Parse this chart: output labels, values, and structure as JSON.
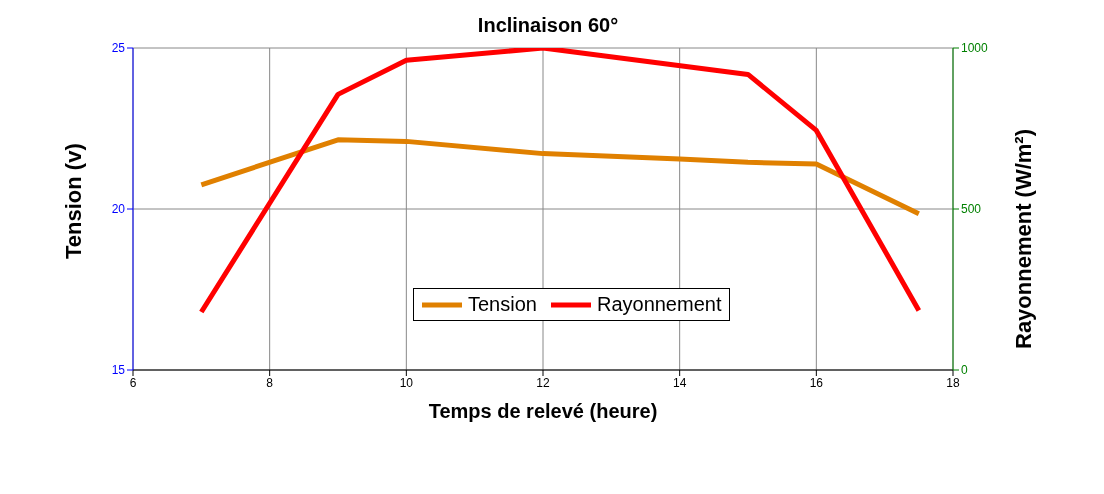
{
  "chart_data": {
    "type": "line",
    "title": "Inclinaison 60°",
    "xlabel": "Temps de relevé (heure)",
    "ylabel": "Tension (v)",
    "y2label": "Rayonnement (W/m²)",
    "x": [
      7,
      9,
      10,
      12,
      14,
      15,
      16,
      17.5
    ],
    "series": [
      {
        "name": "Tension",
        "color": "#e08000",
        "values": [
          20.75,
          22.15,
          22.1,
          21.72,
          21.55,
          21.45,
          21.4,
          19.85
        ]
      },
      {
        "name": "Rayonnement",
        "color": "#ff0000",
        "axis": "y2",
        "x": [
          7,
          9,
          10,
          12,
          15,
          16,
          17.5
        ],
        "values": [
          180,
          856,
          962,
          1000,
          918,
          744,
          185
        ]
      }
    ],
    "xlim": [
      6,
      18
    ],
    "xticks": [
      6,
      8,
      10,
      12,
      14,
      16,
      18
    ],
    "ylim": [
      15,
      25
    ],
    "yticks": [
      15,
      20,
      25
    ],
    "y2lim": [
      0,
      1000
    ],
    "y2ticks": [
      0,
      500,
      1000
    ],
    "grid": true,
    "legend": "center",
    "marker": "none",
    "line_style": "solid"
  }
}
